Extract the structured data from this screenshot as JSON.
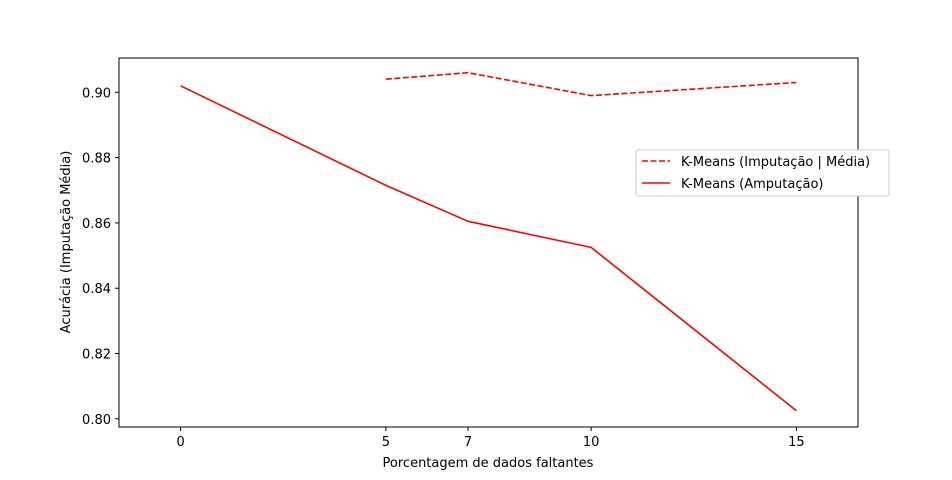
{
  "chart_data": {
    "type": "line",
    "title": "",
    "xlabel": "Porcentagem de dados faltantes",
    "ylabel": "Acurácia (Imputação Média)",
    "xlim": [
      -1.5,
      16.5
    ],
    "ylim": [
      0.7975,
      0.9105
    ],
    "xticks": [
      0,
      5,
      7,
      10,
      15
    ],
    "yticks": [
      0.8,
      0.82,
      0.84,
      0.86,
      0.88,
      0.9
    ],
    "ytick_labels": [
      "0.80",
      "0.82",
      "0.84",
      "0.86",
      "0.88",
      "0.90"
    ],
    "grid": false,
    "legend_position": "right",
    "series": [
      {
        "name": "K-Means (Imputação | Média)",
        "color": "#ff0000",
        "linestyle": "dashed",
        "points": [
          [
            5,
            0.904
          ],
          [
            7,
            0.906
          ],
          [
            10,
            0.899
          ],
          [
            15,
            0.903
          ]
        ]
      },
      {
        "name": "K-Means (Amputação)",
        "color": "#ff0000",
        "linestyle": "solid",
        "points": [
          [
            0,
            0.902
          ],
          [
            5,
            0.8715
          ],
          [
            7,
            0.8605
          ],
          [
            10,
            0.8525
          ],
          [
            15,
            0.8025
          ]
        ]
      }
    ]
  }
}
